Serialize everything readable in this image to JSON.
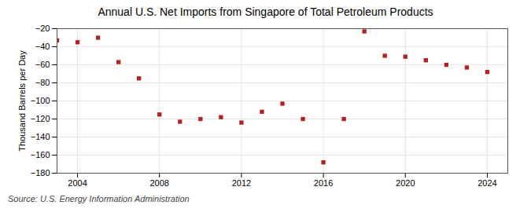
{
  "chart_data": {
    "type": "scatter",
    "title": "Annual U.S. Net Imports from Singapore of Total Petroleum Products",
    "ylabel": "Thousand Barrels per Day",
    "annotation": "Source: U.S. Energy Information Administration",
    "x": [
      2003,
      2004,
      2005,
      2006,
      2007,
      2008,
      2009,
      2010,
      2011,
      2012,
      2013,
      2014,
      2015,
      2016,
      2017,
      2018,
      2019,
      2020,
      2021,
      2022,
      2023,
      2024
    ],
    "values": [
      -33,
      -35,
      -30,
      -57,
      -75,
      -115,
      -123,
      -120,
      -118,
      -124,
      -112,
      -103,
      -120,
      -168,
      -120,
      -23,
      -50,
      -51,
      -55,
      -60,
      -63,
      -68
    ],
    "color": "#b22222",
    "marker": "square",
    "xlim": [
      2003.0,
      2025.0
    ],
    "ylim": [
      -180,
      -20
    ],
    "xticks": [
      2004,
      2008,
      2012,
      2016,
      2020,
      2024
    ],
    "yticks": [
      -20,
      -40,
      -60,
      -80,
      -100,
      -120,
      -140,
      -160,
      -180
    ],
    "grid": true
  }
}
